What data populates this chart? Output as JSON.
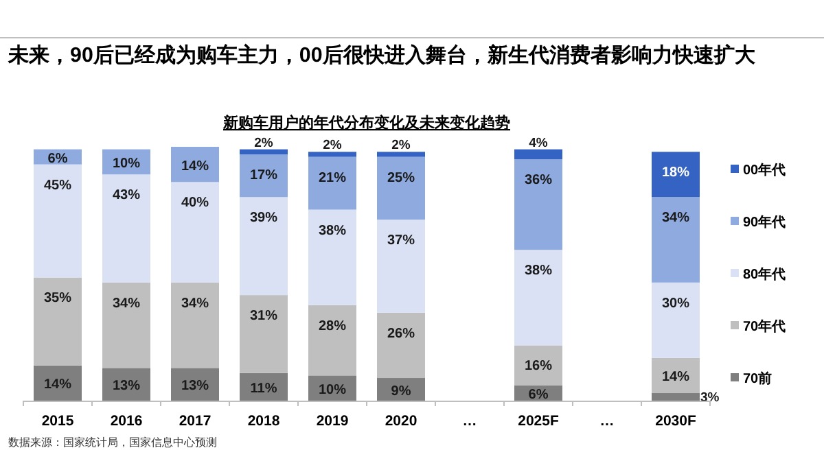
{
  "chart_data": {
    "type": "bar",
    "stacked": true,
    "subtitle": "未来，90后已经成为购车主力，00后很快进入舞台，新生代消费者影响力快速扩大",
    "title": "新购车用户的年代分布变化及未来变化趋势",
    "categories": [
      "2015",
      "2016",
      "2017",
      "2018",
      "2019",
      "2020",
      "…",
      "2025F",
      "…",
      "2030F"
    ],
    "series": [
      {
        "name": "70前",
        "color": "#7f7f7f",
        "values": [
          14,
          13,
          13,
          11,
          10,
          9,
          null,
          6,
          null,
          3
        ],
        "value_labels": [
          "14%",
          "13%",
          "13%",
          "11%",
          "10%",
          "9%",
          null,
          "6%",
          null,
          "3%"
        ]
      },
      {
        "name": "70年代",
        "color": "#bfbfbf",
        "values": [
          35,
          34,
          34,
          31,
          28,
          26,
          null,
          16,
          null,
          14
        ],
        "value_labels": [
          "35%",
          "34%",
          "34%",
          "31%",
          "28%",
          "26%",
          null,
          "16%",
          null,
          "14%"
        ]
      },
      {
        "name": "80年代",
        "color": "#dae1f5",
        "values": [
          45,
          43,
          40,
          39,
          38,
          37,
          null,
          38,
          null,
          30
        ],
        "value_labels": [
          "45%",
          "43%",
          "40%",
          "39%",
          "38%",
          "37%",
          null,
          "38%",
          null,
          "30%"
        ]
      },
      {
        "name": "90年代",
        "color": "#8eaadf",
        "values": [
          6,
          10,
          14,
          17,
          21,
          25,
          null,
          36,
          null,
          34
        ],
        "value_labels": [
          "6%",
          "10%",
          "14%",
          "17%",
          "21%",
          "25%",
          null,
          "36%",
          null,
          "34%"
        ]
      },
      {
        "name": "00年代",
        "color": "#3563c4",
        "values": [
          null,
          null,
          null,
          2,
          2,
          2,
          null,
          4,
          null,
          18
        ],
        "value_labels": [
          null,
          null,
          null,
          "2%",
          "2%",
          "2%",
          null,
          "4%",
          null,
          "18%"
        ]
      }
    ],
    "legend": "right",
    "annotations": [
      "数据来源：国家统计局，国家信息中心预测"
    ]
  }
}
